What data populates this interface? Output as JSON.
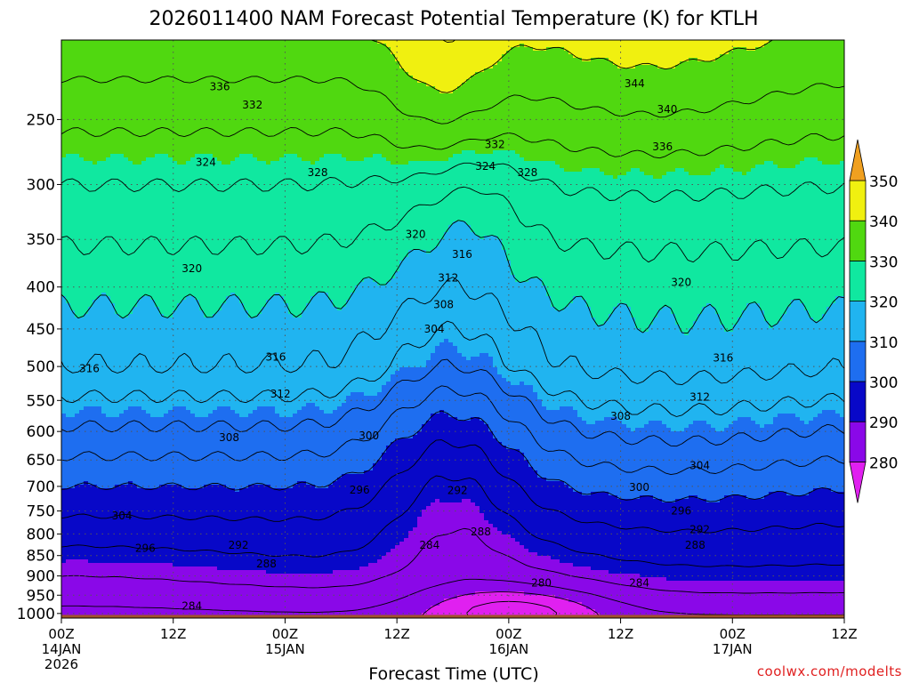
{
  "chart_data": {
    "type": "heatmap",
    "title": "2026011400 NAM Forecast Potential Temperature (K) for KTLH",
    "xlabel": "Forecast Time (UTC)",
    "ylabel": "",
    "x_ticks": [
      {
        "hours": 0,
        "label": "00Z",
        "sub": "14JAN",
        "sub2": "2026"
      },
      {
        "hours": 12,
        "label": "12Z",
        "sub": "",
        "sub2": ""
      },
      {
        "hours": 24,
        "label": "00Z",
        "sub": "15JAN",
        "sub2": ""
      },
      {
        "hours": 36,
        "label": "12Z",
        "sub": "",
        "sub2": ""
      },
      {
        "hours": 48,
        "label": "00Z",
        "sub": "16JAN",
        "sub2": ""
      },
      {
        "hours": 60,
        "label": "12Z",
        "sub": "",
        "sub2": ""
      },
      {
        "hours": 72,
        "label": "00Z",
        "sub": "17JAN",
        "sub2": ""
      },
      {
        "hours": 84,
        "label": "12Z",
        "sub": "",
        "sub2": ""
      }
    ],
    "xlim_hours": [
      0,
      84
    ],
    "y_ticks": [
      250,
      300,
      350,
      400,
      450,
      500,
      550,
      600,
      650,
      700,
      750,
      800,
      850,
      900,
      950,
      1000
    ],
    "ylim_hpa": [
      1013,
      200
    ],
    "y_scale": "log",
    "colorbar": {
      "levels": [
        280,
        290,
        300,
        310,
        320,
        330,
        340,
        350
      ],
      "colors": [
        "#e020f0",
        "#8a08e8",
        "#0808c8",
        "#1e6ef0",
        "#20b4f0",
        "#10e8a0",
        "#50d810",
        "#f0f010",
        "#f0a020"
      ]
    },
    "contour_interval_k": 4,
    "series": [
      {
        "hours": 0,
        "theta_1000": 284,
        "theta_top": 338
      },
      {
        "hours": 12,
        "theta_1000": 285,
        "theta_top": 338
      },
      {
        "hours": 24,
        "theta_1000": 287,
        "theta_top": 338
      },
      {
        "hours": 36,
        "theta_1000": 286,
        "theta_top": 342
      },
      {
        "hours": 42,
        "theta_1000": 278,
        "theta_top": 352
      },
      {
        "hours": 48,
        "theta_1000": 279,
        "theta_top": 344
      },
      {
        "hours": 60,
        "theta_1000": 281,
        "theta_top": 346
      },
      {
        "hours": 72,
        "theta_1000": 283,
        "theta_top": 340
      },
      {
        "hours": 84,
        "theta_1000": 285,
        "theta_top": 338
      }
    ],
    "contour_labels": [
      {
        "value": "336",
        "hours": 17.0,
        "hpa": 228
      },
      {
        "value": "332",
        "hours": 20.5,
        "hpa": 240
      },
      {
        "value": "324",
        "hours": 15.5,
        "hpa": 282
      },
      {
        "value": "328",
        "hours": 27.5,
        "hpa": 290
      },
      {
        "value": "344",
        "hours": 61.5,
        "hpa": 226
      },
      {
        "value": "340",
        "hours": 65.0,
        "hpa": 243
      },
      {
        "value": "336",
        "hours": 64.5,
        "hpa": 270
      },
      {
        "value": "332",
        "hours": 46.5,
        "hpa": 268
      },
      {
        "value": "324",
        "hours": 45.5,
        "hpa": 285
      },
      {
        "value": "328",
        "hours": 50.0,
        "hpa": 290
      },
      {
        "value": "320",
        "hours": 38.0,
        "hpa": 345
      },
      {
        "value": "316",
        "hours": 43.0,
        "hpa": 365
      },
      {
        "value": "320",
        "hours": 14.0,
        "hpa": 380
      },
      {
        "value": "312",
        "hours": 41.5,
        "hpa": 390
      },
      {
        "value": "308",
        "hours": 41.0,
        "hpa": 420
      },
      {
        "value": "304",
        "hours": 40.0,
        "hpa": 450
      },
      {
        "value": "320",
        "hours": 66.5,
        "hpa": 395
      },
      {
        "value": "316",
        "hours": 23.0,
        "hpa": 487
      },
      {
        "value": "316",
        "hours": 3.0,
        "hpa": 503
      },
      {
        "value": "316",
        "hours": 71.0,
        "hpa": 488
      },
      {
        "value": "312",
        "hours": 23.5,
        "hpa": 540
      },
      {
        "value": "312",
        "hours": 68.5,
        "hpa": 545
      },
      {
        "value": "308",
        "hours": 60.0,
        "hpa": 575
      },
      {
        "value": "308",
        "hours": 18.0,
        "hpa": 610
      },
      {
        "value": "300",
        "hours": 33.0,
        "hpa": 607
      },
      {
        "value": "304",
        "hours": 68.5,
        "hpa": 660
      },
      {
        "value": "300",
        "hours": 62.0,
        "hpa": 702
      },
      {
        "value": "296",
        "hours": 32.0,
        "hpa": 707
      },
      {
        "value": "292",
        "hours": 42.5,
        "hpa": 708
      },
      {
        "value": "296",
        "hours": 66.5,
        "hpa": 750
      },
      {
        "value": "304",
        "hours": 6.5,
        "hpa": 760
      },
      {
        "value": "292",
        "hours": 68.5,
        "hpa": 790
      },
      {
        "value": "288",
        "hours": 45.0,
        "hpa": 795
      },
      {
        "value": "296",
        "hours": 9.0,
        "hpa": 833
      },
      {
        "value": "292",
        "hours": 19.0,
        "hpa": 825
      },
      {
        "value": "284",
        "hours": 39.5,
        "hpa": 825
      },
      {
        "value": "288",
        "hours": 68.0,
        "hpa": 826
      },
      {
        "value": "288",
        "hours": 22.0,
        "hpa": 870
      },
      {
        "value": "280",
        "hours": 51.5,
        "hpa": 918
      },
      {
        "value": "284",
        "hours": 62.0,
        "hpa": 918
      },
      {
        "value": "284",
        "hours": 14.0,
        "hpa": 980
      }
    ]
  },
  "watermark": "coolwx.com/modelts",
  "colors": {
    "ground": "#a0522d",
    "contour": "#000000",
    "grid": "#555555"
  }
}
